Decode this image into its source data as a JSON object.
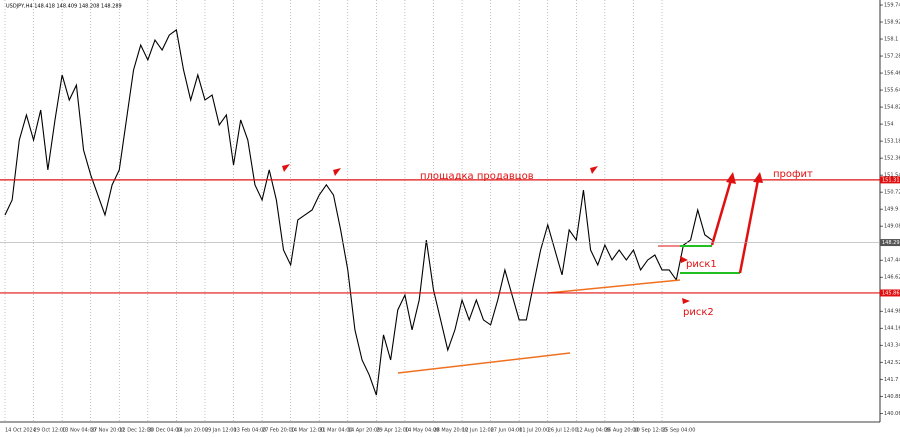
{
  "chart_data": {
    "type": "line",
    "title": "USDJPY,H4  148.418 148.409 148.208 148.289",
    "categories": [
      "14 Oct 2024",
      null,
      null,
      null,
      "29 Oct 12:00",
      null,
      null,
      null,
      "13 Nov 04:00",
      null,
      null,
      null,
      "27 Nov 20:00",
      null,
      null,
      null,
      "12 Dec 12:00",
      null,
      null,
      null,
      "30 Dec 04:00",
      null,
      null,
      null,
      "14 Jan 20:00",
      null,
      null,
      null,
      "29 Jan 12:00",
      null,
      null,
      null,
      "13 Feb 04:00",
      null,
      null,
      null,
      "27 Feb 20:00",
      null,
      null,
      null,
      "14 Mar 12:00",
      null,
      null,
      null,
      "31 Mar 04:00",
      null,
      null,
      null,
      "14 Apr 20:00",
      null,
      null,
      null,
      "29 Apr 12:00",
      null,
      null,
      null,
      "14 May 04:00",
      null,
      null,
      null,
      "28 May 20:00",
      null,
      null,
      null,
      "12 Jun 12:00",
      null,
      null,
      null,
      "27 Jun 04:00",
      null,
      null,
      null,
      "11 Jul 20:00",
      null,
      null,
      null,
      "26 Jul 12:00",
      null,
      null,
      null,
      "12 Aug 04:00",
      null,
      null,
      null,
      "26 Aug 20:00",
      null,
      null,
      null,
      "10 Sep 12:00",
      null,
      null,
      null,
      "25 Sep 04:00",
      null,
      null,
      null,
      null,
      null,
      null,
      null
    ],
    "series": [
      {
        "name": "USDJPY",
        "color": "#000000",
        "values": [
          149.62,
          150.34,
          153.23,
          154.44,
          153.23,
          154.68,
          151.79,
          154.2,
          156.37,
          155.16,
          155.88,
          152.75,
          151.55,
          150.58,
          149.62,
          151.07,
          151.79,
          154.2,
          156.61,
          157.81,
          157.09,
          158.05,
          157.57,
          158.29,
          158.54,
          156.61,
          155.16,
          156.37,
          155.16,
          155.4,
          153.96,
          154.44,
          152.03,
          154.2,
          153.23,
          151.07,
          150.34,
          151.79,
          150.34,
          147.93,
          147.21,
          149.38,
          149.62,
          149.86,
          150.58,
          151.07,
          150.58,
          148.9,
          146.97,
          144.08,
          142.63,
          141.91,
          140.94,
          143.84,
          142.63,
          145.04,
          145.76,
          144.08,
          145.52,
          148.41,
          146.01,
          144.56,
          143.11,
          144.08,
          145.52,
          144.56,
          145.52,
          144.56,
          144.32,
          145.52,
          146.97,
          145.76,
          144.56,
          144.56,
          146.25,
          147.93,
          149.14,
          147.93,
          146.73,
          148.9,
          148.41,
          150.82,
          147.93,
          147.21,
          148.17,
          147.45,
          147.93,
          147.45,
          147.93,
          146.97,
          147.45,
          147.69,
          146.97,
          146.97,
          146.49,
          148.17,
          148.41,
          149.86,
          148.66,
          148.41
        ]
      }
    ],
    "ylim": [
      139.64,
      159.74
    ],
    "yticks": [
      159.74,
      158.92,
      158.1,
      157.28,
      156.46,
      155.64,
      154.82,
      154,
      153.18,
      152.36,
      151.54,
      150.72,
      149.9,
      149.08,
      148.26,
      147.44,
      146.62,
      145.8,
      144.98,
      144.16,
      143.34,
      142.52,
      141.7,
      140.88,
      140.06
    ],
    "grid": true,
    "current_price": 148.29,
    "levels": [
      {
        "value": 151.31,
        "color": "#e01010"
      },
      {
        "value": 145.86,
        "color": "#e01010"
      }
    ],
    "annotations": [
      "площадка продавцов",
      "профит",
      "риск1",
      "риск2"
    ]
  }
}
